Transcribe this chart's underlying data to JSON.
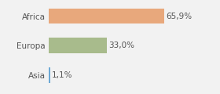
{
  "categories": [
    "Africa",
    "Europa",
    "Asia"
  ],
  "values": [
    65.9,
    33.0,
    1.1
  ],
  "labels": [
    "65,9%",
    "33,0%",
    "1,1%"
  ],
  "bar_colors": [
    "#e8a87c",
    "#a8bb8c",
    "#6ca8d5"
  ],
  "background_color": "#f2f2f2",
  "xlim": [
    0,
    95
  ],
  "label_fontsize": 7.5,
  "tick_fontsize": 7.5,
  "bar_height": 0.52
}
